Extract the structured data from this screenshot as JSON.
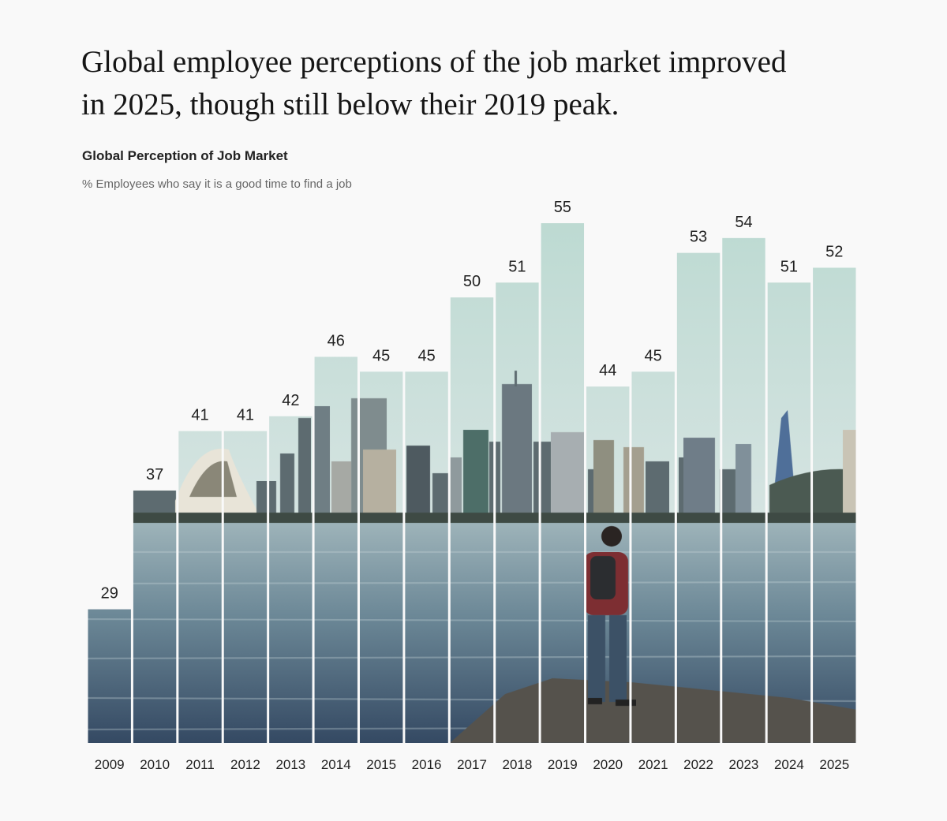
{
  "chart_data": {
    "type": "bar",
    "title": [
      "Global employee perceptions of the job market improved",
      "in 2025, though still below their 2019 peak."
    ],
    "subtitle": "Global Perception of Job Market",
    "y_label": "% Employees who say it is a good time to find a job",
    "categories": [
      "2009",
      "2010",
      "2011",
      "2012",
      "2013",
      "2014",
      "2015",
      "2016",
      "2017",
      "2018",
      "2019",
      "2020",
      "2021",
      "2022",
      "2023",
      "2024",
      "2025"
    ],
    "values": [
      29,
      37,
      41,
      41,
      42,
      46,
      45,
      45,
      50,
      51,
      55,
      44,
      45,
      53,
      54,
      51,
      52
    ],
    "ylim": [
      20,
      55
    ]
  }
}
